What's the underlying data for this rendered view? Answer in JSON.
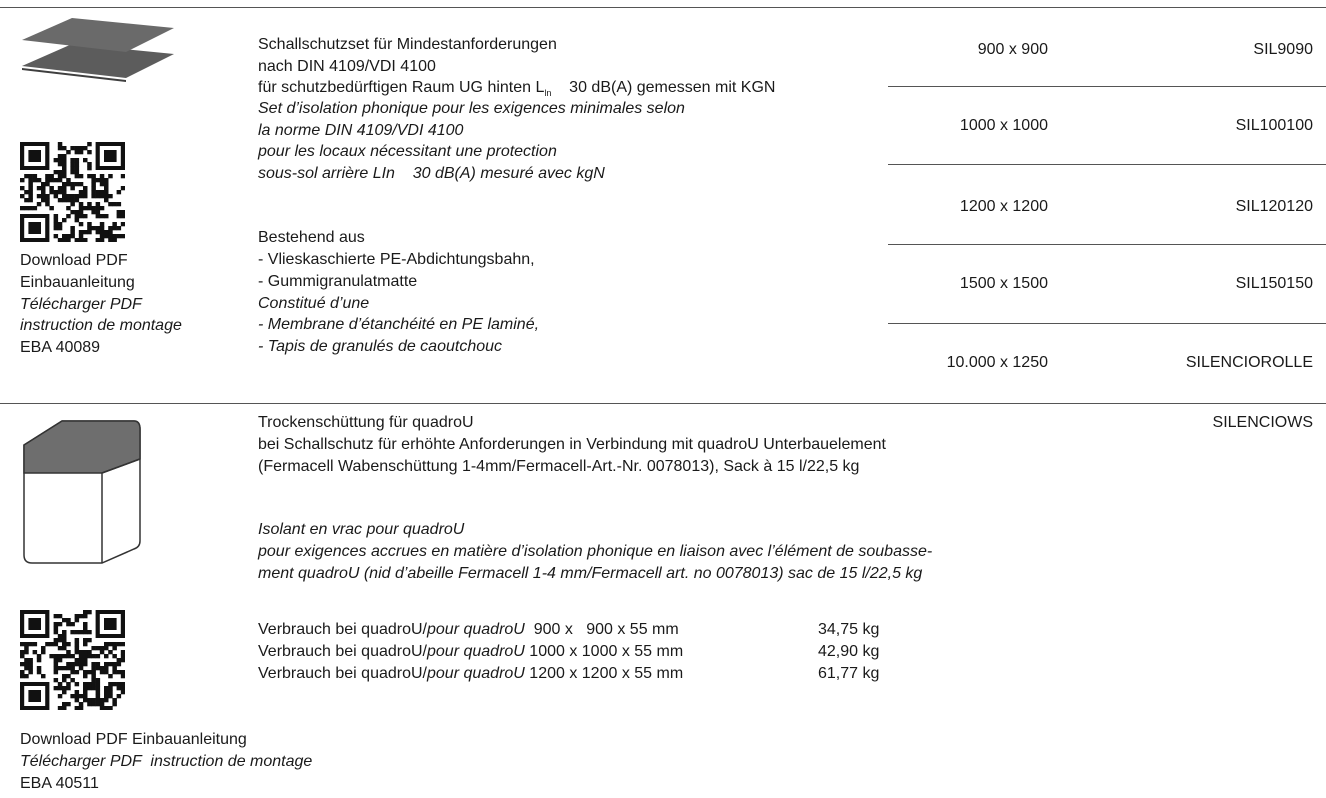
{
  "section1": {
    "title_de": [
      "Schallschutzset für Mindestanforderungen",
      "nach DIN 4109/VDI 4100"
    ],
    "requirement_de": {
      "text": "für schutzbedürftigen Raum UG hinten L",
      "subscript": "ln",
      "text_after": "30 dB(A) gemessen mit KGN"
    },
    "description_fr": [
      "Set d’isolation phonique pour les exigences minimales selon",
      "la norme DIN 4109/VDI 4100",
      "pour les locaux nécessitant une protection",
      "sous-sol arrière LIn    30 dB(A) mesuré avec kgN"
    ],
    "composition_de": [
      "Bestehend aus",
      "- Vlieskaschierte PE-Abdichtungsbahn,",
      "- Gummigranulatmatte"
    ],
    "composition_fr": [
      "Constitué d’une",
      "- Membrane d’étanchéité en PE laminé,",
      "- Tapis de granulés de caoutchouc"
    ],
    "download_de": [
      "Download PDF",
      "Einbauanleitung"
    ],
    "download_fr": [
      "Télécharger PDF",
      "instruction de montage"
    ],
    "doc_number": "EBA 40089",
    "variants": [
      {
        "size": "900 x 900",
        "code": "SIL9090"
      },
      {
        "size": "1000 x 1000",
        "code": "SIL100100"
      },
      {
        "size": "1200 x 1200",
        "code": "SIL120120"
      },
      {
        "size": "1500 x 1500",
        "code": "SIL150150"
      },
      {
        "size": "10.000 x 1250",
        "code": "SILENCIOROLLE"
      }
    ]
  },
  "section2": {
    "code": "SILENCIOWS",
    "description_de": [
      "Trockenschüttung für quadroU",
      "bei Schallschutz für erhöhte Anforderungen in Verbindung mit quadroU Unterbauelement",
      "(Fermacell Wabenschüttung 1-4mm/Fermacell-Art.-Nr. 0078013), Sack à 15 l/22,5 kg"
    ],
    "description_fr": [
      "Isolant en vrac pour quadroU",
      "pour exigences accrues en matière d’isolation phonique en liaison avec l’élément de soubasse-",
      "ment quadroU (nid d’abeille Fermacell 1-4 mm/Fermacell art. no 0078013) sac de 15 l/22,5 kg"
    ],
    "consumption": [
      {
        "label": "Verbrauch bei quadroU/",
        "label_fr": "pour quadroU",
        "dimensions": "  900 x   900 x 55 mm",
        "weight": "34,75 kg"
      },
      {
        "label": "Verbrauch bei quadroU/",
        "label_fr": "pour quadroU",
        "dimensions": " 1000 x 1000 x 55 mm",
        "weight": "42,90 kg"
      },
      {
        "label": "Verbrauch bei quadroU/",
        "label_fr": "pour quadroU",
        "dimensions": " 1200 x 1200 x 55 mm",
        "weight": "61,77 kg"
      }
    ],
    "download_de": "Download PDF Einbauanleitung",
    "download_fr": "Télécharger PDF  instruction de montage",
    "doc_number": "EBA 40511"
  }
}
